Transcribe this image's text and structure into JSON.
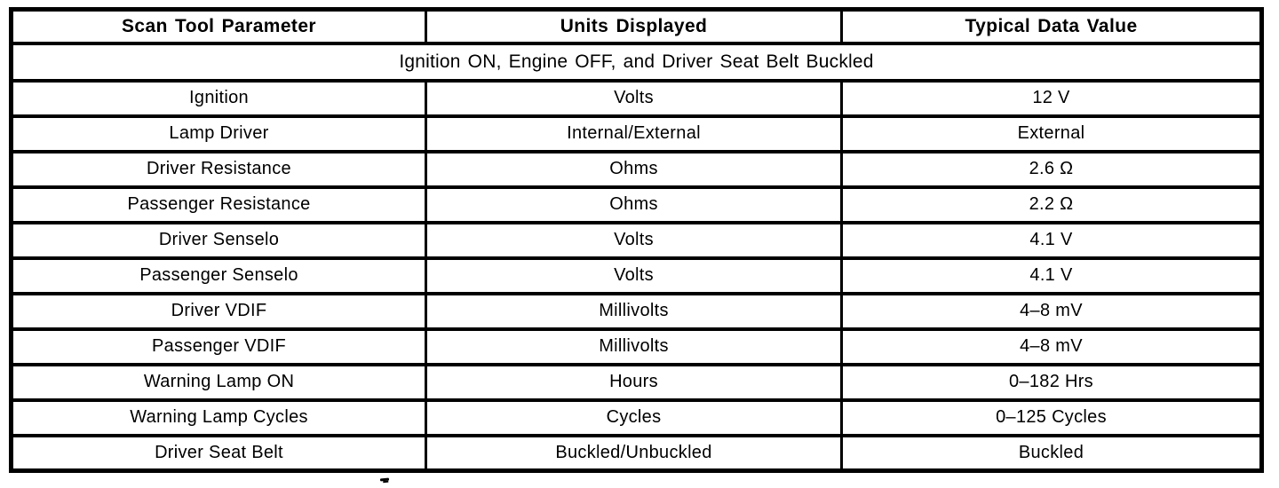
{
  "table": {
    "columns": [
      {
        "label": "Scan Tool Parameter"
      },
      {
        "label": "Units Displayed"
      },
      {
        "label": "Typical Data Value"
      }
    ],
    "section_title": "Ignition ON, Engine OFF, and Driver Seat Belt Buckled",
    "rows": [
      {
        "parameter": "Ignition",
        "units": "Volts",
        "value": "12 V"
      },
      {
        "parameter": "Lamp Driver",
        "units": "Internal/External",
        "value": "External"
      },
      {
        "parameter": "Driver Resistance",
        "units": "Ohms",
        "value": "2.6 Ω"
      },
      {
        "parameter": "Passenger Resistance",
        "units": "Ohms",
        "value": "2.2 Ω"
      },
      {
        "parameter": "Driver Senselo",
        "units": "Volts",
        "value": "4.1 V"
      },
      {
        "parameter": "Passenger Senselo",
        "units": "Volts",
        "value": "4.1 V"
      },
      {
        "parameter": "Driver VDIF",
        "units": "Millivolts",
        "value": "4–8 mV"
      },
      {
        "parameter": "Passenger VDIF",
        "units": "Millivolts",
        "value": "4–8 mV"
      },
      {
        "parameter": "Warning Lamp ON",
        "units": "Hours",
        "value": "0–182 Hrs"
      },
      {
        "parameter": "Warning Lamp Cycles",
        "units": "Cycles",
        "value": "0–125 Cycles"
      },
      {
        "parameter": "Driver Seat Belt",
        "units": "Buckled/Unbuckled",
        "value": "Buckled"
      }
    ],
    "colors": {
      "ink": "#000000",
      "paper": "#ffffff"
    }
  }
}
